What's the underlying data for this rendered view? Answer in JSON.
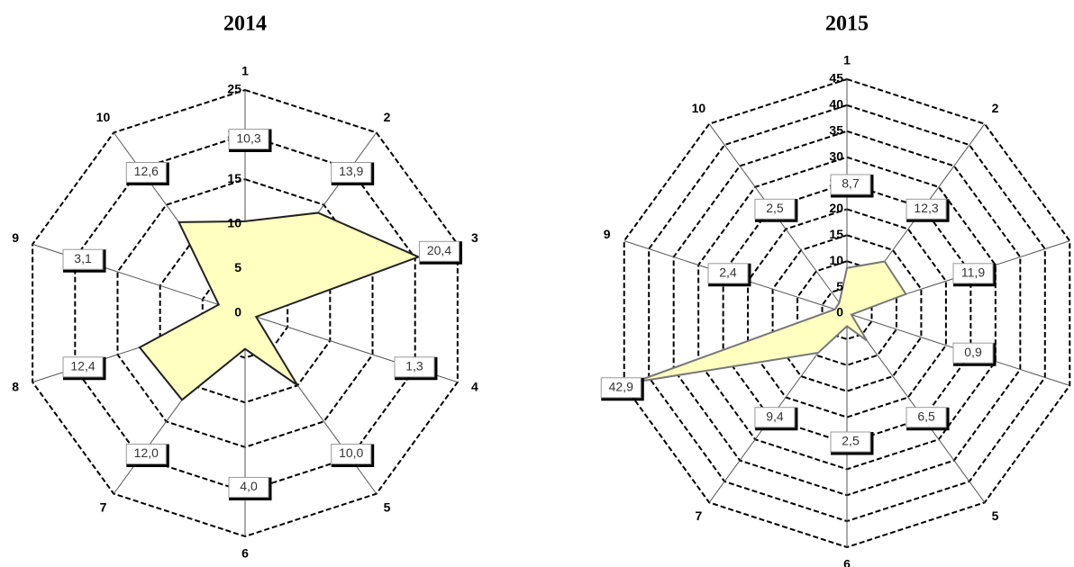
{
  "chart_data": [
    {
      "type": "radar",
      "title": "2014",
      "categories": [
        "1",
        "2",
        "3",
        "4",
        "5",
        "6",
        "7",
        "8",
        "9",
        "10"
      ],
      "values": [
        10.3,
        13.9,
        20.4,
        1.3,
        10.0,
        4.0,
        12.0,
        12.4,
        3.1,
        12.6
      ],
      "value_labels": [
        "10,3",
        "13,9",
        "20,4",
        "1,3",
        "10,0",
        "4,0",
        "12,0",
        "12,4",
        "3,1",
        "12,6"
      ],
      "ylim": [
        0,
        25
      ],
      "yticks": [
        0,
        5,
        10,
        15,
        20,
        25
      ],
      "grid": true,
      "color": "#ffffc0"
    },
    {
      "type": "radar",
      "title": "2015",
      "categories": [
        "1",
        "2",
        "3",
        "4",
        "5",
        "6",
        "7",
        "8",
        "9",
        "10"
      ],
      "values": [
        8.7,
        12.3,
        11.9,
        0.9,
        6.5,
        2.5,
        9.4,
        42.9,
        2.4,
        2.5
      ],
      "value_labels": [
        "8,7",
        "12,3",
        "11,9",
        "0,9",
        "6,5",
        "2,5",
        "9,4",
        "42,9",
        "2,4",
        "2,5"
      ],
      "ylim": [
        0,
        45
      ],
      "yticks": [
        0,
        5,
        10,
        15,
        20,
        25,
        30,
        35,
        40,
        45
      ],
      "grid": true,
      "color": "#ffffc0"
    }
  ]
}
